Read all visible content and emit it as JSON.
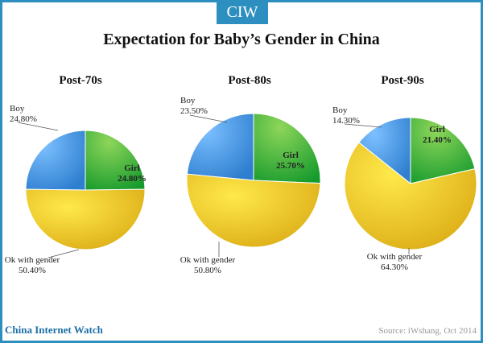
{
  "brand": {
    "logo": "CIW",
    "footer": "China Internet Watch"
  },
  "source": "Source: iWshang, Oct 2014",
  "colors": {
    "frame": "#2d8fc0",
    "boy": "#4a9ee8",
    "girl": "#3fae3f",
    "ok": "#f0cc22"
  },
  "chart_data": [
    {
      "type": "pie",
      "title": "Post-70s",
      "slices": [
        {
          "label": "Boy",
          "value": 24.8,
          "display": "24.80%"
        },
        {
          "label": "Girl",
          "value": 24.8,
          "display": "24.80%"
        },
        {
          "label": "Ok with gender",
          "value": 50.4,
          "display": "50.40%"
        }
      ]
    },
    {
      "type": "pie",
      "title": "Post-80s",
      "slices": [
        {
          "label": "Boy",
          "value": 23.5,
          "display": "23.50%"
        },
        {
          "label": "Girl",
          "value": 25.7,
          "display": "25.70%"
        },
        {
          "label": "Ok with gender",
          "value": 50.8,
          "display": "50.80%"
        }
      ]
    },
    {
      "type": "pie",
      "title": "Post-90s",
      "slices": [
        {
          "label": "Boy",
          "value": 14.3,
          "display": "14.30%"
        },
        {
          "label": "Girl",
          "value": 21.4,
          "display": "21.40%"
        },
        {
          "label": "Ok with gender",
          "value": 64.3,
          "display": "64.30%"
        }
      ]
    }
  ],
  "main_title": "Expectation for Baby’s Gender in China"
}
